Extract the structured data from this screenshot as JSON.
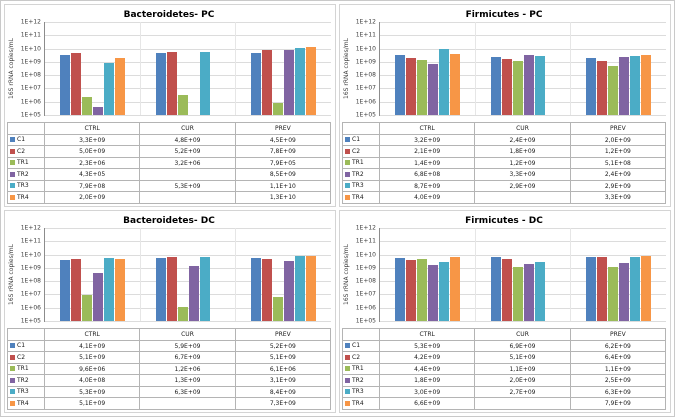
{
  "figure": {
    "background": "#ffffff",
    "yticks": [
      "1E+12",
      "1E+11",
      "1E+10",
      "1E+09",
      "1E+08",
      "1E+07",
      "1E+06",
      "1E+05"
    ],
    "axis_min_exp": 5,
    "axis_max_exp": 12
  },
  "series_palette": {
    "C1": "#4F81BD",
    "C2": "#C0504D",
    "TR1": "#9BBB59",
    "TR2": "#8064A2",
    "TR3": "#4BACC6",
    "TR4": "#F79646"
  },
  "chart_data": [
    {
      "type": "bar",
      "title": "Bacteroidetes- PC",
      "ylabel": "16S rRNA copies/mL",
      "yscale": "log",
      "ylim": [
        "1E+05",
        "1E+12"
      ],
      "grid": true,
      "legend_position": "data-table-left",
      "categories": [
        "CTRL",
        "CUR",
        "PREV"
      ],
      "series": [
        {
          "name": "C1",
          "color": "#4F81BD",
          "values": [
            "3,3E+09",
            "4,8E+09",
            "4,5E+09"
          ]
        },
        {
          "name": "C2",
          "color": "#C0504D",
          "values": [
            "5,0E+09",
            "5,2E+09",
            "7,8E+09"
          ]
        },
        {
          "name": "TR1",
          "color": "#9BBB59",
          "values": [
            "2,3E+06",
            "3,2E+06",
            "7,9E+05"
          ]
        },
        {
          "name": "TR2",
          "color": "#8064A2",
          "values": [
            "4,3E+05",
            "",
            "8,5E+09"
          ]
        },
        {
          "name": "TR3",
          "color": "#4BACC6",
          "values": [
            "7,9E+08",
            "5,3E+09",
            "1,1E+10"
          ]
        },
        {
          "name": "TR4",
          "color": "#F79646",
          "values": [
            "2,0E+09",
            "",
            "1,3E+10"
          ]
        }
      ]
    },
    {
      "type": "bar",
      "title": "Firmicutes - PC",
      "ylabel": "16S rRNA copies/mL",
      "yscale": "log",
      "ylim": [
        "1E+05",
        "1E+12"
      ],
      "grid": true,
      "legend_position": "data-table-left",
      "categories": [
        "CTRL",
        "CUR",
        "PREV"
      ],
      "series": [
        {
          "name": "C1",
          "color": "#4F81BD",
          "values": [
            "3,2E+09",
            "2,4E+09",
            "2,0E+09"
          ]
        },
        {
          "name": "C2",
          "color": "#C0504D",
          "values": [
            "2,1E+09",
            "1,8E+09",
            "1,2E+09"
          ]
        },
        {
          "name": "TR1",
          "color": "#9BBB59",
          "values": [
            "1,4E+09",
            "1,2E+09",
            "5,1E+08"
          ]
        },
        {
          "name": "TR2",
          "color": "#8064A2",
          "values": [
            "6,8E+08",
            "3,3E+09",
            "2,4E+09"
          ]
        },
        {
          "name": "TR3",
          "color": "#4BACC6",
          "values": [
            "8,7E+09",
            "2,9E+09",
            "2,9E+09"
          ]
        },
        {
          "name": "TR4",
          "color": "#F79646",
          "values": [
            "4,0E+09",
            "",
            "3,3E+09"
          ]
        }
      ]
    },
    {
      "type": "bar",
      "title": "Bacteroidetes- DC",
      "ylabel": "16S rRNA copies/mL",
      "yscale": "log",
      "ylim": [
        "1E+05",
        "1E+12"
      ],
      "grid": true,
      "legend_position": "data-table-left",
      "categories": [
        "CTRL",
        "CUR",
        "PREV"
      ],
      "series": [
        {
          "name": "C1",
          "color": "#4F81BD",
          "values": [
            "4,1E+09",
            "5,9E+09",
            "5,2E+09"
          ]
        },
        {
          "name": "C2",
          "color": "#C0504D",
          "values": [
            "5,1E+09",
            "6,7E+09",
            "5,1E+09"
          ]
        },
        {
          "name": "TR1",
          "color": "#9BBB59",
          "values": [
            "9,6E+06",
            "1,2E+06",
            "6,1E+06"
          ]
        },
        {
          "name": "TR2",
          "color": "#8064A2",
          "values": [
            "4,0E+08",
            "1,3E+09",
            "3,1E+09"
          ]
        },
        {
          "name": "TR3",
          "color": "#4BACC6",
          "values": [
            "5,3E+09",
            "6,3E+09",
            "8,4E+09"
          ]
        },
        {
          "name": "TR4",
          "color": "#F79646",
          "values": [
            "5,1E+09",
            "",
            "7,3E+09"
          ]
        }
      ]
    },
    {
      "type": "bar",
      "title": "Firmicutes - DC",
      "ylabel": "16S rRNA copies/mL",
      "yscale": "log",
      "ylim": [
        "1E+05",
        "1E+12"
      ],
      "grid": true,
      "legend_position": "data-table-left",
      "categories": [
        "CTRL",
        "CUR",
        "PREV"
      ],
      "series": [
        {
          "name": "C1",
          "color": "#4F81BD",
          "values": [
            "5,3E+09",
            "6,9E+09",
            "6,2E+09"
          ]
        },
        {
          "name": "C2",
          "color": "#C0504D",
          "values": [
            "4,2E+09",
            "5,1E+09",
            "6,4E+09"
          ]
        },
        {
          "name": "TR1",
          "color": "#9BBB59",
          "values": [
            "4,4E+09",
            "1,1E+09",
            "1,1E+09"
          ]
        },
        {
          "name": "TR2",
          "color": "#8064A2",
          "values": [
            "1,8E+09",
            "2,0E+09",
            "2,5E+09"
          ]
        },
        {
          "name": "TR3",
          "color": "#4BACC6",
          "values": [
            "3,0E+09",
            "2,7E+09",
            "6,3E+09"
          ]
        },
        {
          "name": "TR4",
          "color": "#F79646",
          "values": [
            "6,6E+09",
            "",
            "7,9E+09"
          ]
        }
      ]
    }
  ]
}
